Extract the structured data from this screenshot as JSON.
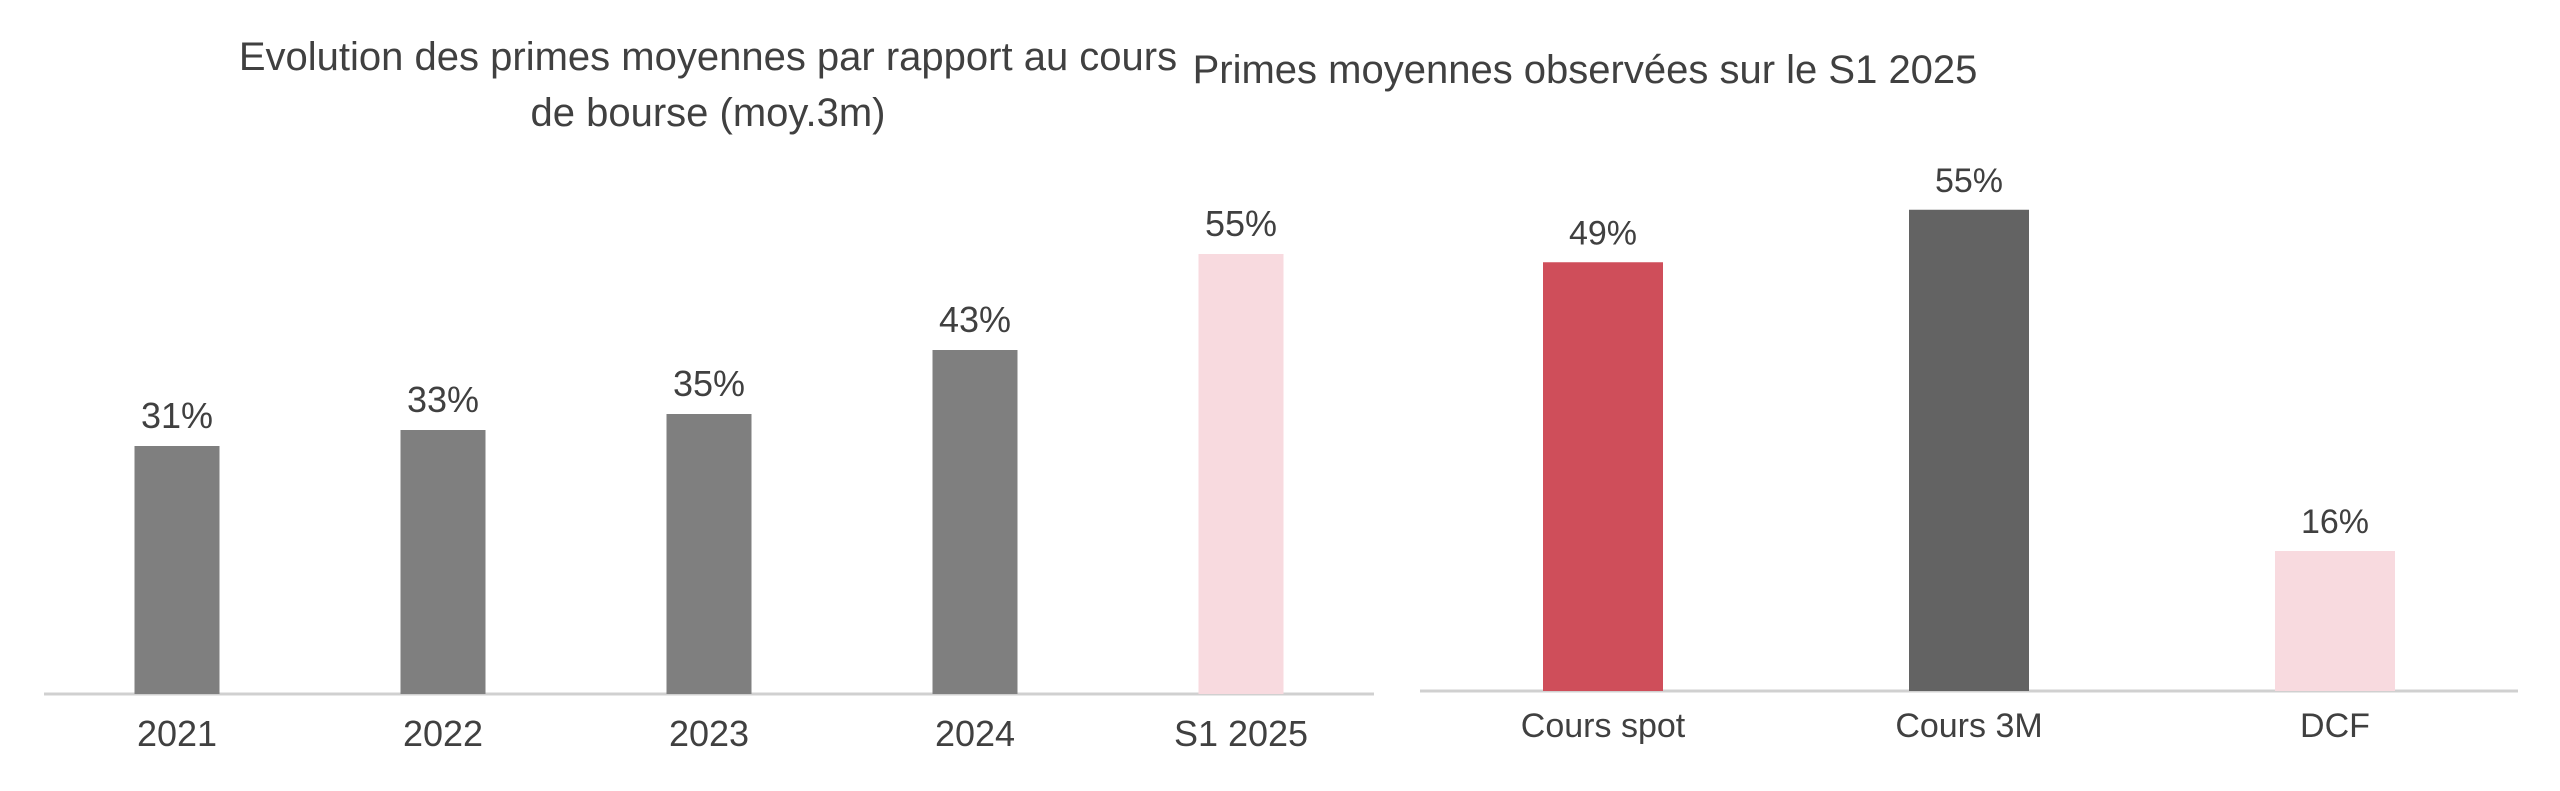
{
  "chart_data": [
    {
      "type": "bar",
      "title_lines": [
        "Evolution des primes moyennes par rapport au cours",
        "de bourse (moy.3m)"
      ],
      "categories": [
        "2021",
        "2022",
        "2023",
        "2024",
        "S1 2025"
      ],
      "values": [
        31,
        33,
        35,
        43,
        55
      ],
      "value_labels": [
        "31%",
        "33%",
        "35%",
        "43%",
        "55%"
      ],
      "bar_colors": [
        "#7f7f7f",
        "#7f7f7f",
        "#7f7f7f",
        "#7f7f7f",
        "#f8dadf"
      ],
      "ylim": [
        0,
        60
      ],
      "grid": false,
      "legend": "none"
    },
    {
      "type": "bar",
      "title_lines": [
        "Primes moyennes observées sur le S1 2025"
      ],
      "categories": [
        "Cours spot",
        "Cours 3M",
        "DCF"
      ],
      "values": [
        49,
        55,
        16
      ],
      "value_labels": [
        "49%",
        "55%",
        "16%"
      ],
      "bar_colors": [
        "#cf4e5a",
        "#636363",
        "#f8dadf"
      ],
      "ylim": [
        0,
        60
      ],
      "grid": false,
      "legend": "none"
    }
  ],
  "colors": {
    "text": "#404040",
    "axis": "#d0d0d0"
  }
}
